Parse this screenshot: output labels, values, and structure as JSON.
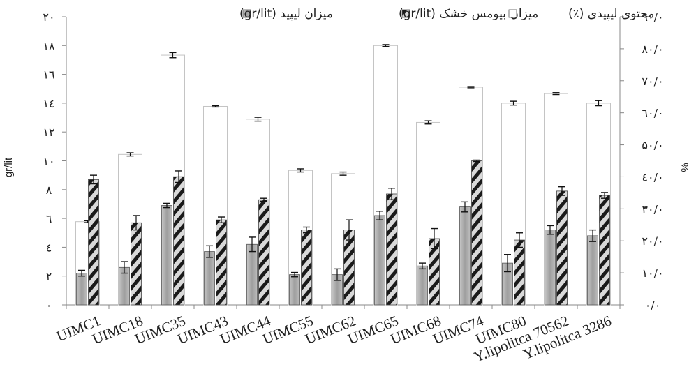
{
  "chart_data": {
    "type": "bar",
    "categories": [
      "UIMC1",
      "UIMC18",
      "UIMC35",
      "UIMC43",
      "UIMC44",
      "UIMC55",
      "UIMC62",
      "UIMC65",
      "UIMC68",
      "UIMC74",
      "UIMC80",
      "Y.lipolitca 70562",
      "Y.lipolitca 3286"
    ],
    "series": [
      {
        "name": "میزان لیپید (gr/lit)",
        "axis": "left",
        "fill": "#a9a9a9",
        "values": [
          2.2,
          2.6,
          6.9,
          3.7,
          4.2,
          2.1,
          2.1,
          6.2,
          2.7,
          6.8,
          2.9,
          5.2,
          4.8
        ],
        "errors": [
          0.2,
          0.4,
          0.15,
          0.4,
          0.5,
          0.15,
          0.4,
          0.3,
          0.2,
          0.35,
          0.6,
          0.3,
          0.4
        ]
      },
      {
        "name": "میزان بیومس خشک (gr/lit)",
        "axis": "left",
        "fill": "hatched-dark",
        "values": [
          8.7,
          5.7,
          8.9,
          5.9,
          7.3,
          5.2,
          5.2,
          7.7,
          4.6,
          10.0,
          4.5,
          7.9,
          7.6
        ],
        "errors": [
          0.3,
          0.5,
          0.4,
          0.2,
          0.1,
          0.2,
          0.7,
          0.4,
          0.7,
          0.05,
          0.5,
          0.3,
          0.2
        ]
      },
      {
        "name": "محتوی لیپیدی (٪)",
        "axis": "right",
        "fill": "#ffffff",
        "values": [
          26.0,
          47.0,
          78.0,
          62.0,
          58.0,
          42.0,
          41.0,
          81.0,
          57.0,
          68.0,
          63.0,
          66.0,
          63.0
        ],
        "errors": [
          0.3,
          0.5,
          0.8,
          0.2,
          0.6,
          0.5,
          0.5,
          0.3,
          0.5,
          0.2,
          0.6,
          0.3,
          0.8
        ]
      }
    ],
    "left_axis": {
      "label": "gr/lit",
      "ylim": [
        0,
        20
      ],
      "ticks": [
        0,
        2,
        4,
        6,
        8,
        10,
        12,
        14,
        16,
        18,
        20
      ],
      "tick_labels": [
        "۰",
        "۲",
        "٤",
        "٦",
        "۸",
        "۱۰",
        "۱۲",
        "۱٤",
        "۱٦",
        "۱۸",
        "۲۰"
      ]
    },
    "right_axis": {
      "label": "%",
      "ylim": [
        0,
        90
      ],
      "ticks": [
        0,
        10,
        20,
        30,
        40,
        50,
        60,
        70,
        80,
        90
      ],
      "tick_labels": [
        "۰/۰",
        "۱۰/۰",
        "۲۰/۰",
        "۳۰/۰",
        "٤۰/۰",
        "۵۰/۰",
        "٦۰/۰",
        "۷۰/۰",
        "۸۰/۰",
        "۹۰/۰"
      ]
    },
    "legend_position": "top",
    "grid": false,
    "colors": {
      "lipid": "#a9a9a9",
      "biomass_dark": "#1a1a1a",
      "biomass_light": "#d9d9d9",
      "content": "#ffffff",
      "axis": "#888888"
    }
  }
}
